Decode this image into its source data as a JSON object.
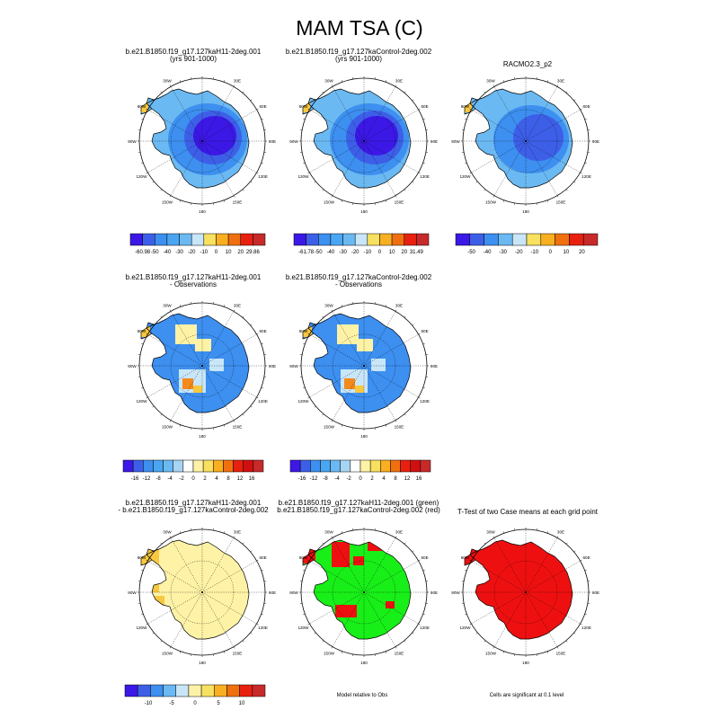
{
  "main_title": "MAM TSA (C)",
  "land_colors": {
    "cold_core": "#3c18e6",
    "deep_blue": "#3d5fe8",
    "blue": "#3d8ff0",
    "light_blue": "#6bb9f2",
    "pale_blue": "#c8e6f8",
    "pale_yellow": "#fdf2a6",
    "yellow": "#f8c840",
    "orange": "#f48a1a",
    "red": "#e82010",
    "green": "#18ee18",
    "fill_red": "#ee1010"
  },
  "polar_labels": [
    "30W",
    "30E",
    "60W",
    "60E",
    "90W",
    "90E",
    "120W",
    "120E",
    "150W",
    "150E",
    "180"
  ],
  "chart_data": [
    {
      "id": "p1",
      "type": "heatmap",
      "title_lines": [
        "b.e21.B1850.f19_g17.127kaH11-2deg.001",
        "(yrs 901-1000)"
      ],
      "colorbar": {
        "colors": [
          "#3c18e6",
          "#3d5fe8",
          "#3d8ff0",
          "#4aa6f2",
          "#6bb9f2",
          "#c8e6f8",
          "#f8e060",
          "#f8b020",
          "#f07010",
          "#e82010",
          "#c82a2a"
        ],
        "labels": [
          "-60.98",
          "-50",
          "-40",
          "-30",
          "-20",
          "-10",
          "0",
          "10",
          "20",
          "29.86"
        ]
      }
    },
    {
      "id": "p2",
      "type": "heatmap",
      "title_lines": [
        "b.e21.B1850.f19_g17.127kaControl-2deg.002",
        "(yrs 901-1000)"
      ],
      "colorbar": {
        "colors": [
          "#3c18e6",
          "#3d5fe8",
          "#3d8ff0",
          "#4aa6f2",
          "#6bb9f2",
          "#c8e6f8",
          "#f8e060",
          "#f8b020",
          "#f07010",
          "#e82010",
          "#c82a2a"
        ],
        "labels": [
          "-61.78",
          "-50",
          "-40",
          "-30",
          "-20",
          "-10",
          "0",
          "10",
          "20",
          "31.49"
        ]
      }
    },
    {
      "id": "p3",
      "type": "heatmap",
      "title_lines": [
        "RACMO2.3_p2"
      ],
      "colorbar": {
        "colors": [
          "#3c18e6",
          "#3d5fe8",
          "#3d8ff0",
          "#6bb9f2",
          "#c8e6f8",
          "#f8e060",
          "#f8b020",
          "#f07010",
          "#e82010",
          "#c82a2a"
        ],
        "labels": [
          "-50",
          "-40",
          "-30",
          "-20",
          "-10",
          "0",
          "10",
          "20"
        ]
      }
    },
    {
      "id": "p4",
      "type": "heatmap",
      "title_lines": [
        "b.e21.B1850.f19_g17.127kaH11-2deg.001",
        "- Observations"
      ],
      "colorbar": {
        "colors": [
          "#3c18e6",
          "#3d5fe8",
          "#3d8ff0",
          "#4aa6f2",
          "#6bb9f2",
          "#a8d4f4",
          "#ffffff",
          "#fdf2a6",
          "#f8e060",
          "#f8b020",
          "#f07010",
          "#e82010",
          "#d01010",
          "#c82a2a"
        ],
        "labels": [
          "-16",
          "-12",
          "-8",
          "-4",
          "-2",
          "0",
          "2",
          "4",
          "8",
          "12",
          "16"
        ]
      }
    },
    {
      "id": "p5",
      "type": "heatmap",
      "title_lines": [
        "b.e21.B1850.f19_g17.127kaControl-2deg.002",
        "- Observations"
      ],
      "colorbar": {
        "colors": [
          "#3c18e6",
          "#3d5fe8",
          "#3d8ff0",
          "#4aa6f2",
          "#6bb9f2",
          "#a8d4f4",
          "#ffffff",
          "#fdf2a6",
          "#f8e060",
          "#f8b020",
          "#f07010",
          "#e82010",
          "#d01010",
          "#c82a2a"
        ],
        "labels": [
          "-16",
          "-12",
          "-8",
          "-4",
          "-2",
          "0",
          "2",
          "4",
          "8",
          "12",
          "16"
        ]
      }
    },
    {
      "id": "p6",
      "type": "heatmap",
      "title_lines": [
        "b.e21.B1850.f19_g17.127kaH11-2deg.001",
        "- b.e21.B1850.f19_g17.127kaControl-2deg.002"
      ],
      "colorbar": {
        "colors": [
          "#3c18e6",
          "#3d5fe8",
          "#3d8ff0",
          "#6bb9f2",
          "#c8e6f8",
          "#fdf2a6",
          "#f8e060",
          "#f8b020",
          "#f07010",
          "#e82010",
          "#c82a2a"
        ],
        "labels": [
          "-10",
          "-5",
          "0",
          "5",
          "10"
        ]
      }
    },
    {
      "id": "p7",
      "type": "heatmap",
      "title_lines": [
        "b.e21.B1850.f19_g17.127kaH11-2deg.001 (green)",
        "b.e21.B1850.f19_g17.127kaControl-2deg.002 (red)"
      ],
      "caption": "Model relative to Obs"
    },
    {
      "id": "p8",
      "type": "heatmap",
      "title_lines": [
        "T-Test of two Case means at each grid point"
      ],
      "caption": "Cells are significant at 0.1 level"
    }
  ]
}
